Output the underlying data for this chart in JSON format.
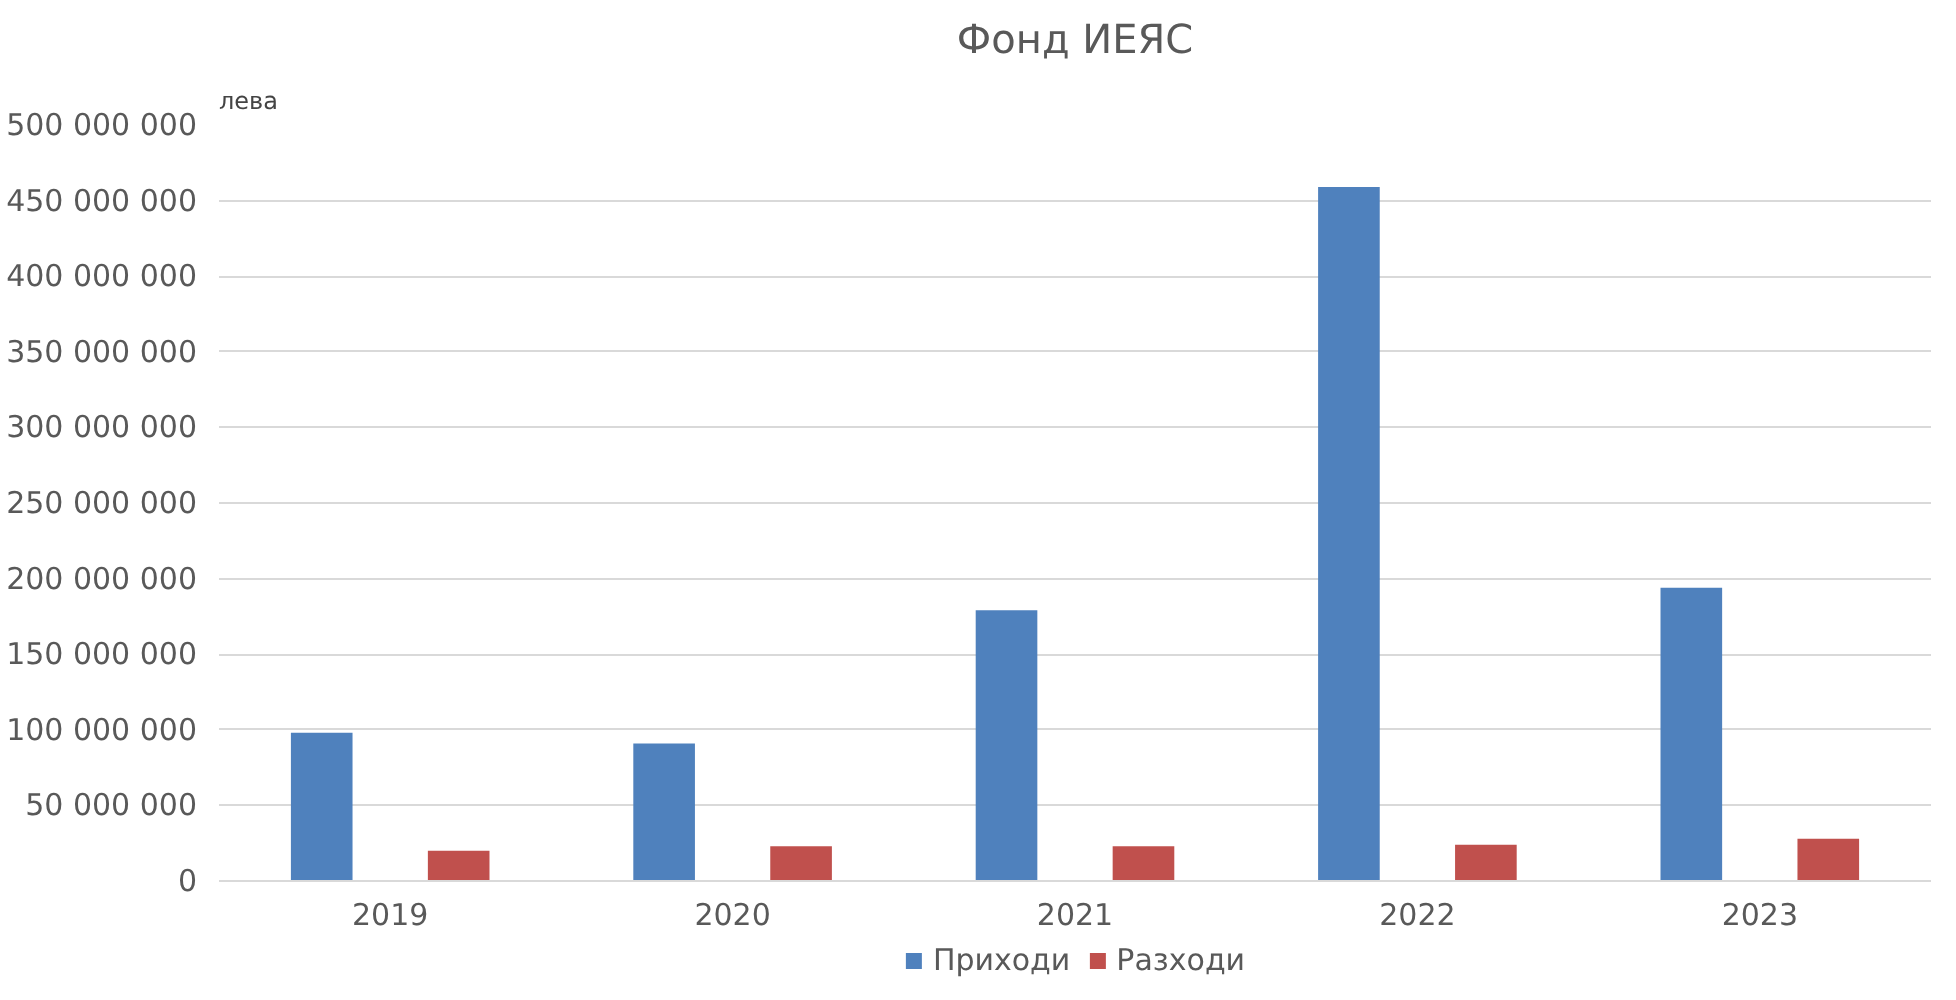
{
  "chart_data": {
    "type": "bar",
    "title": "Фонд ИЕЯС",
    "ylabel": "лева",
    "categories": [
      "2019",
      "2020",
      "2021",
      "2022",
      "2023"
    ],
    "series": [
      {
        "name": "Приходи",
        "color": "#4f81bd",
        "values": [
          98000000,
          91000000,
          179000000,
          459000000,
          194000000
        ]
      },
      {
        "name": "Разходи",
        "color": "#c0504d",
        "values": [
          20000000,
          23000000,
          23000000,
          24000000,
          28000000
        ]
      }
    ],
    "ylim": [
      0,
      500000000
    ],
    "yticks": [
      {
        "value": 0,
        "label": "0"
      },
      {
        "value": 50000000,
        "label": "50 000 000"
      },
      {
        "value": 100000000,
        "label": "100 000 000"
      },
      {
        "value": 150000000,
        "label": "150 000 000"
      },
      {
        "value": 200000000,
        "label": "200 000 000"
      },
      {
        "value": 250000000,
        "label": "250 000 000"
      },
      {
        "value": 300000000,
        "label": "300 000 000"
      },
      {
        "value": 350000000,
        "label": "350 000 000"
      },
      {
        "value": 400000000,
        "label": "400 000 000"
      },
      {
        "value": 450000000,
        "label": "450 000 000"
      },
      {
        "value": 500000000,
        "label": "500 000 000"
      }
    ],
    "grid": "y",
    "legend": "bottom"
  }
}
